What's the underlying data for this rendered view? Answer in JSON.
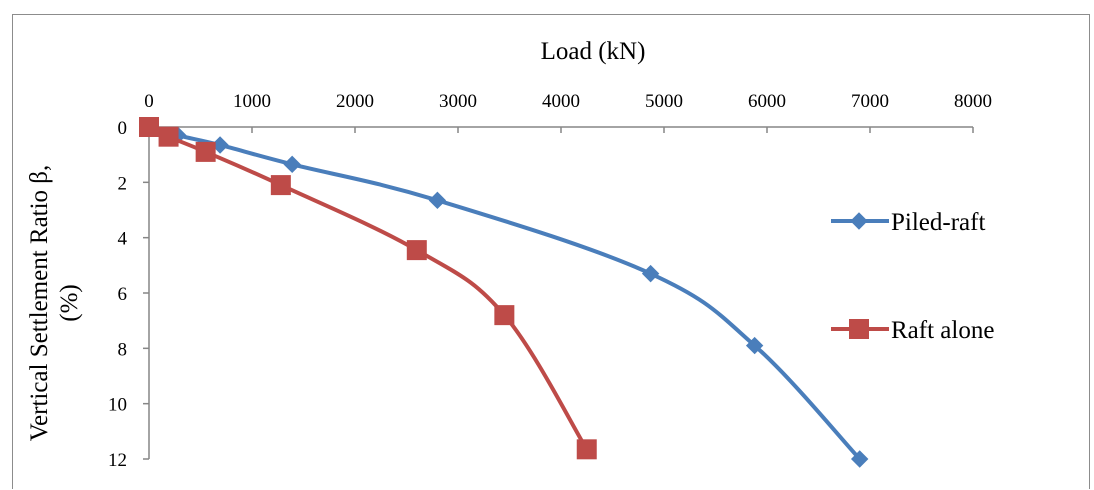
{
  "chart_data": {
    "type": "line",
    "xlabel": "Load (kN)",
    "ylabel": [
      "Vertical Settlement Ratio β,",
      "(%)"
    ],
    "xlim": [
      0,
      8000
    ],
    "ylim": [
      0,
      12
    ],
    "x_ticks": [
      "0",
      "1000",
      "2000",
      "3000",
      "4000",
      "5000",
      "6000",
      "7000",
      "8000"
    ],
    "y_ticks": [
      "0",
      "2",
      "4",
      "6",
      "8",
      "10",
      "12"
    ],
    "x_axis_position": "top",
    "y_axis_inverted": true,
    "grid": false,
    "legend_position": "right",
    "series": [
      {
        "name": "Piled-raft",
        "color": "#4a7ebb",
        "marker": "diamond",
        "points": [
          [
            0,
            0
          ],
          [
            280,
            0.3
          ],
          [
            690,
            0.65
          ],
          [
            1390,
            1.35
          ],
          [
            2800,
            2.65
          ],
          [
            4870,
            5.3
          ],
          [
            5880,
            7.9
          ],
          [
            6900,
            12.0
          ]
        ]
      },
      {
        "name": "Raft alone",
        "color": "#be4b48",
        "marker": "square",
        "points": [
          [
            0,
            0
          ],
          [
            190,
            0.35
          ],
          [
            550,
            0.9
          ],
          [
            1280,
            2.1
          ],
          [
            2600,
            4.45
          ],
          [
            3450,
            6.8
          ],
          [
            4250,
            11.65
          ]
        ]
      }
    ]
  }
}
